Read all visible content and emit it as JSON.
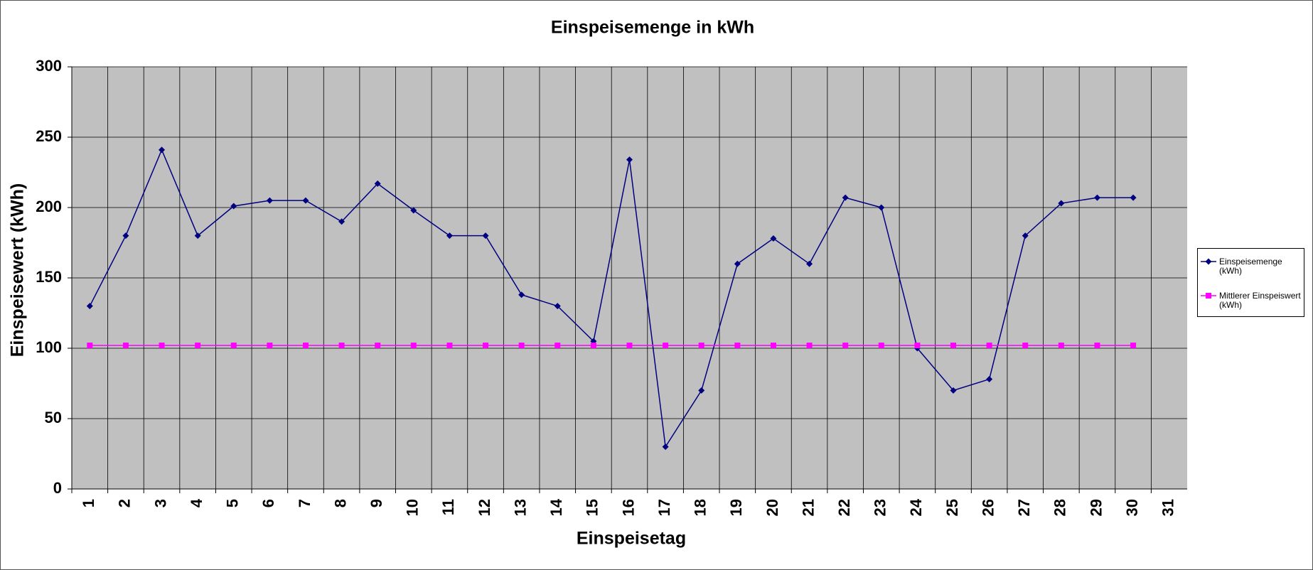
{
  "chart_data": {
    "type": "line",
    "title": "Einspeisemenge in kWh",
    "x_label": "Einspeisetag",
    "y_label": "Einspeisewert  (kWh)",
    "categories": [
      "1",
      "2",
      "3",
      "4",
      "5",
      "6",
      "7",
      "8",
      "9",
      "10",
      "11",
      "12",
      "13",
      "14",
      "15",
      "16",
      "17",
      "18",
      "19",
      "20",
      "21",
      "22",
      "23",
      "24",
      "25",
      "26",
      "27",
      "28",
      "29",
      "30",
      "31"
    ],
    "series": [
      {
        "name": "Einspeisemenge (kWh)",
        "color": "#000080",
        "marker": "diamond",
        "values": [
          130,
          180,
          241,
          180,
          201,
          205,
          205,
          190,
          217,
          198,
          180,
          180,
          138,
          130,
          105,
          234,
          30,
          70,
          160,
          178,
          160,
          207,
          200,
          100,
          70,
          78,
          180,
          203,
          207,
          207,
          null
        ]
      },
      {
        "name": "Mittlerer Einspeiswert (kWh)",
        "color": "#ff00ff",
        "marker": "square",
        "values": [
          102,
          102,
          102,
          102,
          102,
          102,
          102,
          102,
          102,
          102,
          102,
          102,
          102,
          102,
          102,
          102,
          102,
          102,
          102,
          102,
          102,
          102,
          102,
          102,
          102,
          102,
          102,
          102,
          102,
          102,
          null
        ]
      }
    ],
    "ylim": [
      0,
      300
    ],
    "yticks": [
      0,
      50,
      100,
      150,
      200,
      250,
      300
    ],
    "grid": true,
    "legend": "right"
  }
}
